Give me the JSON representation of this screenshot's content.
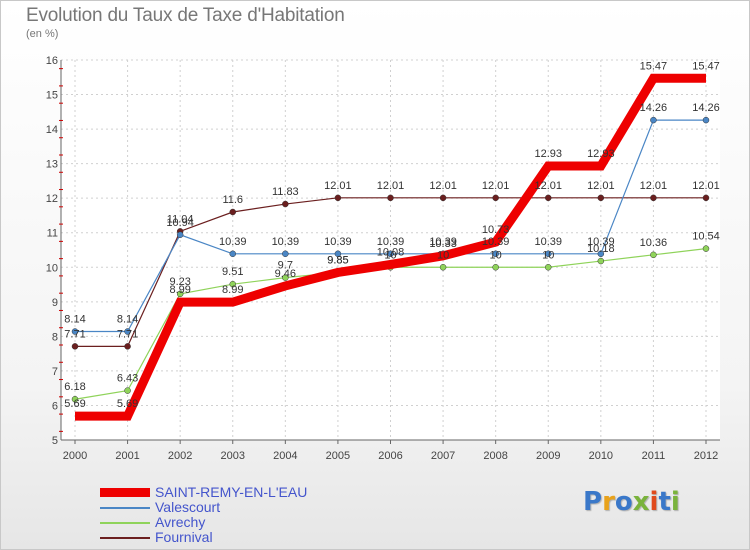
{
  "title": "Evolution du Taux de Taxe d'Habitation",
  "subtitle": "(en %)",
  "logo": {
    "text": "Proxiti",
    "colors": [
      "#3a78c9",
      "#e8a21b",
      "#3a78c9",
      "#7ab33c",
      "#e04a1c",
      "#3a78c9",
      "#7ab33c"
    ]
  },
  "chart_data": {
    "type": "line",
    "x": [
      "2000",
      "2001",
      "2002",
      "2003",
      "2004",
      "2005",
      "2006",
      "2007",
      "2008",
      "2009",
      "2010",
      "2011",
      "2012"
    ],
    "ylim": [
      5,
      16
    ],
    "yticks": [
      "5",
      "6",
      "7",
      "8",
      "9",
      "10",
      "11",
      "12",
      "13",
      "14",
      "15",
      "16"
    ],
    "grid": true,
    "legend_position": "bottom-left",
    "series": [
      {
        "name": "Fournival",
        "color": "#6b1f1f",
        "width": 1.2,
        "values": [
          7.71,
          7.71,
          11.04,
          11.6,
          11.83,
          12.01,
          12.01,
          12.01,
          12.01,
          12.01,
          12.01,
          12.01,
          12.01
        ],
        "labels": [
          "7.71",
          "7.71",
          "11.04",
          "11.6",
          "11.83",
          "12.01",
          "12.01",
          "12.01",
          "12.01",
          "12.01",
          "12.01",
          "12.01",
          "12.01"
        ]
      },
      {
        "name": "Avrechy",
        "color": "#8fd35a",
        "width": 1.2,
        "values": [
          6.18,
          6.43,
          9.23,
          9.51,
          9.7,
          9.85,
          10,
          10,
          10,
          10,
          10.18,
          10.36,
          10.54
        ],
        "labels": [
          "6.18",
          "6.43",
          "9.23",
          "9.51",
          "9.7",
          "9.85",
          "10",
          "10",
          "10",
          "10",
          "10.18",
          "10.36",
          "10.54"
        ]
      },
      {
        "name": "Valescourt",
        "color": "#4a86c5",
        "width": 1.2,
        "values": [
          8.14,
          8.14,
          10.94,
          10.39,
          10.39,
          10.39,
          10.39,
          10.39,
          10.39,
          10.39,
          10.39,
          14.26,
          14.26
        ],
        "labels": [
          "8.14",
          "8.14",
          "10.94",
          "10.39",
          "10.39",
          "10.39",
          "10.39",
          "10.39",
          "10.39",
          "10.39",
          "10.39",
          "14.26",
          "14.26"
        ]
      },
      {
        "name": "SAINT-REMY-EN-L'EAU",
        "color": "#ee0000",
        "width": 9,
        "values": [
          5.69,
          5.69,
          8.99,
          8.99,
          9.46,
          9.85,
          10.08,
          10.33,
          10.73,
          12.93,
          12.93,
          15.47,
          15.47
        ],
        "labels": [
          "5.69",
          "5.69",
          "8.99",
          "8.99",
          "9.46",
          "9.85",
          "10.08",
          "10.33",
          "10.73",
          "12.93",
          "12.93",
          "15.47",
          "15.47"
        ]
      }
    ],
    "legend": [
      "SAINT-REMY-EN-L'EAU",
      "Valescourt",
      "Avrechy",
      "Fournival"
    ]
  }
}
